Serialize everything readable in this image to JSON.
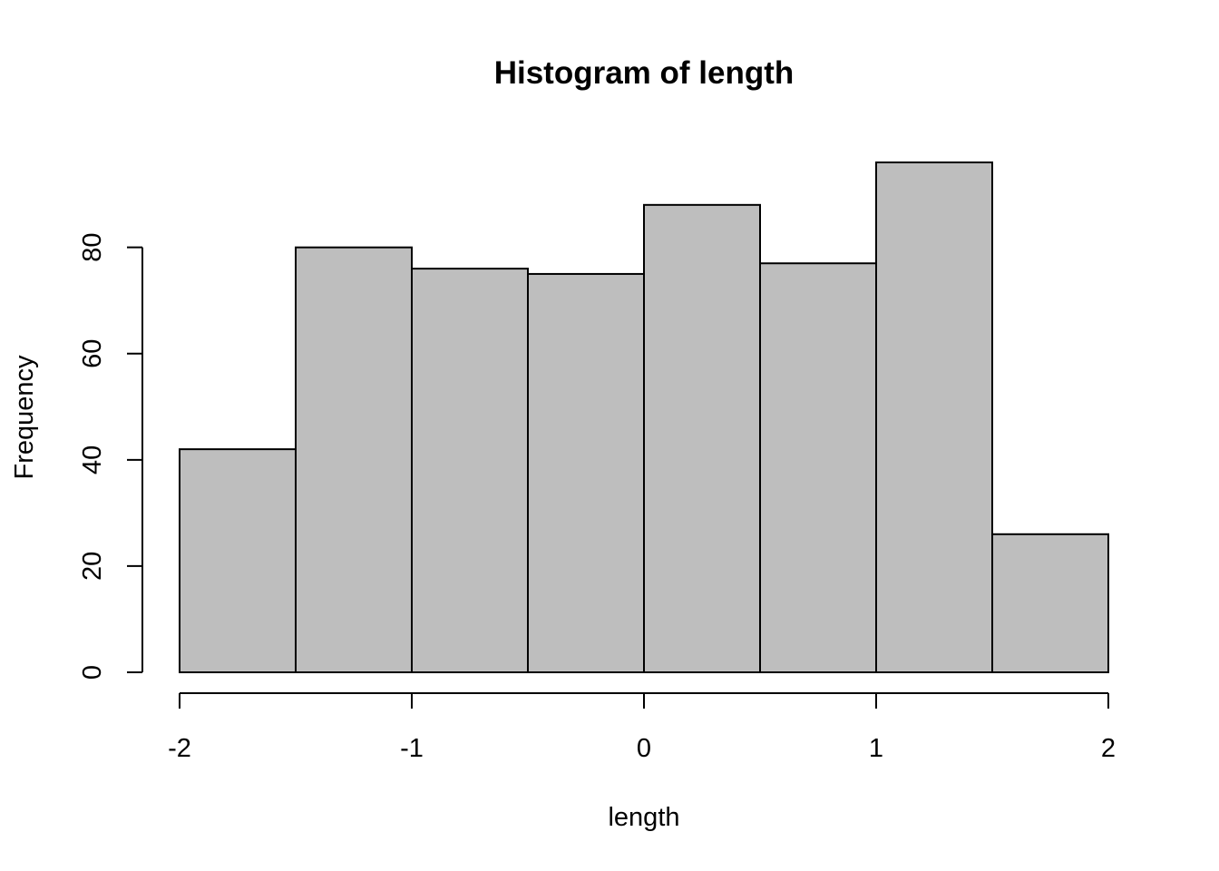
{
  "chart_data": {
    "type": "bar",
    "subtype": "histogram",
    "title": "Histogram of length",
    "xlabel": "length",
    "ylabel": "Frequency",
    "bin_edges": [
      -2,
      -1.5,
      -1,
      -0.5,
      0,
      0.5,
      1,
      1.5,
      2
    ],
    "values": [
      42,
      80,
      76,
      75,
      88,
      77,
      96,
      26
    ],
    "xlim": [
      -2,
      2
    ],
    "ylim": [
      0,
      96
    ],
    "x_ticks": [
      -2,
      -1,
      0,
      1,
      2
    ],
    "x_tick_labels": [
      "-2",
      "-1",
      "0",
      "1",
      "2"
    ],
    "y_ticks": [
      0,
      20,
      40,
      60,
      80
    ],
    "y_tick_labels": [
      "0",
      "20",
      "40",
      "60",
      "80"
    ],
    "bar_fill": "#bebebe",
    "grid": false
  }
}
